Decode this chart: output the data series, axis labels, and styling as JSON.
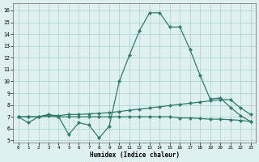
{
  "x": [
    0,
    1,
    2,
    3,
    4,
    5,
    6,
    7,
    8,
    9,
    10,
    11,
    12,
    13,
    14,
    15,
    16,
    17,
    18,
    19,
    20,
    21,
    22,
    23
  ],
  "line_main": [
    7.0,
    6.5,
    7.0,
    7.2,
    7.0,
    5.5,
    6.5,
    6.3,
    5.2,
    6.2,
    10.0,
    12.2,
    14.3,
    15.8,
    15.8,
    14.6,
    14.6,
    12.7,
    10.5,
    8.5,
    8.6,
    7.8,
    7.1,
    6.6
  ],
  "line_upper": [
    7.0,
    7.0,
    7.0,
    7.15,
    7.1,
    7.2,
    7.2,
    7.25,
    7.3,
    7.35,
    7.45,
    7.55,
    7.65,
    7.75,
    7.85,
    7.95,
    8.05,
    8.15,
    8.25,
    8.35,
    8.45,
    8.45,
    7.75,
    7.2
  ],
  "line_lower": [
    7.0,
    7.0,
    7.0,
    7.05,
    7.0,
    7.0,
    7.0,
    7.0,
    7.0,
    7.0,
    7.0,
    7.0,
    7.0,
    7.0,
    7.0,
    7.0,
    6.9,
    6.9,
    6.85,
    6.8,
    6.8,
    6.75,
    6.7,
    6.6
  ],
  "color": "#2e7d6e",
  "bg_color": "#dff0f0",
  "grid_color": "#aacece",
  "xlabel": "Humidex (Indice chaleur)",
  "xlim": [
    -0.5,
    23.5
  ],
  "ylim": [
    4.8,
    16.6
  ],
  "yticks": [
    5,
    6,
    7,
    8,
    9,
    10,
    11,
    12,
    13,
    14,
    15,
    16
  ],
  "xticks": [
    0,
    1,
    2,
    3,
    4,
    5,
    6,
    7,
    8,
    9,
    10,
    11,
    12,
    13,
    14,
    15,
    16,
    17,
    18,
    19,
    20,
    21,
    22,
    23
  ],
  "marker": "D",
  "markersize": 2.2,
  "linewidth": 0.9
}
